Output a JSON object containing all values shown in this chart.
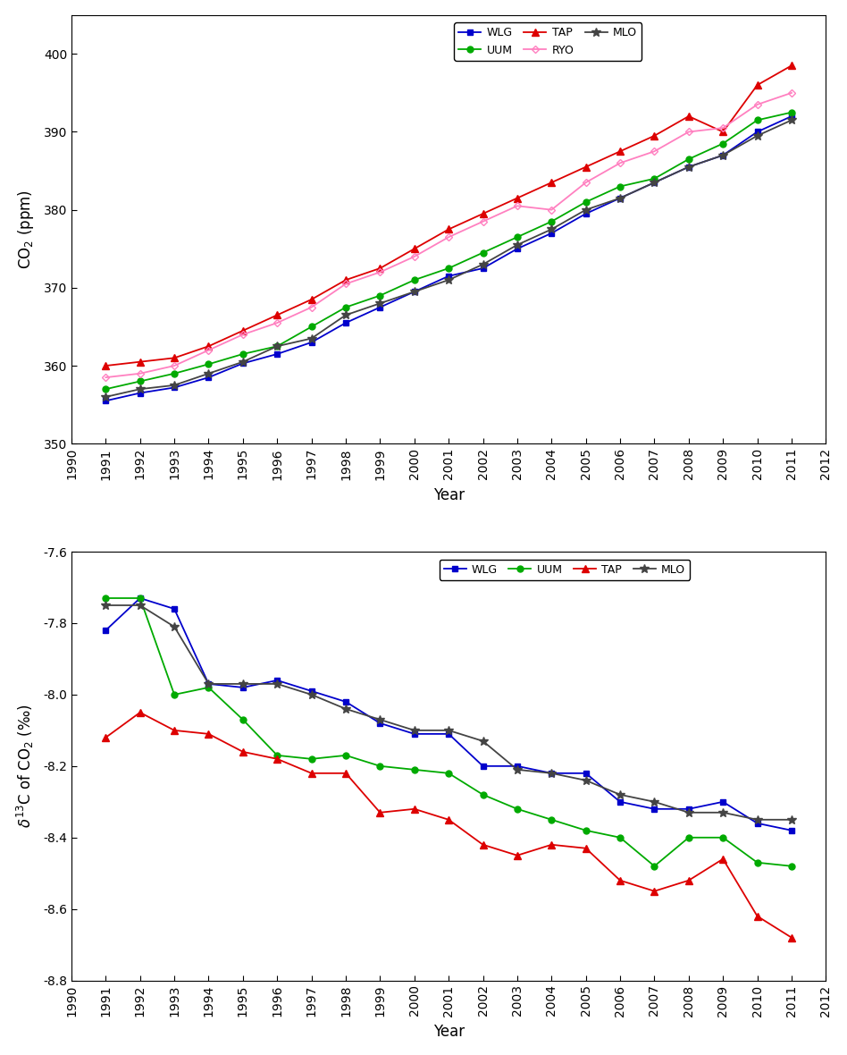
{
  "years": [
    1991,
    1992,
    1993,
    1994,
    1995,
    1996,
    1997,
    1998,
    1999,
    2000,
    2001,
    2002,
    2003,
    2004,
    2005,
    2006,
    2007,
    2008,
    2009,
    2010,
    2011
  ],
  "WLG_co2": [
    355.5,
    356.5,
    357.2,
    358.5,
    360.3,
    361.5,
    363.0,
    365.5,
    367.5,
    369.5,
    371.5,
    372.5,
    375.0,
    377.0,
    379.5,
    381.5,
    383.5,
    385.5,
    387.0,
    390.0,
    392.0
  ],
  "UUM_co2": [
    357.0,
    358.0,
    359.0,
    360.2,
    361.5,
    362.5,
    365.0,
    367.5,
    369.0,
    371.0,
    372.5,
    374.5,
    376.5,
    378.5,
    381.0,
    383.0,
    384.0,
    386.5,
    388.5,
    391.5,
    392.5
  ],
  "TAP_co2": [
    360.0,
    360.5,
    361.0,
    362.5,
    364.5,
    366.5,
    368.5,
    371.0,
    372.5,
    375.0,
    377.5,
    379.5,
    381.5,
    383.5,
    385.5,
    387.5,
    389.5,
    392.0,
    390.0,
    396.0,
    398.5
  ],
  "RYO_co2": [
    358.5,
    359.0,
    360.0,
    362.0,
    364.0,
    365.5,
    367.5,
    370.5,
    372.0,
    374.0,
    376.5,
    378.5,
    380.5,
    380.0,
    383.5,
    386.0,
    387.5,
    390.0,
    390.5,
    393.5,
    395.0
  ],
  "MLO_co2": [
    356.0,
    357.0,
    357.5,
    359.0,
    360.5,
    362.5,
    363.5,
    366.5,
    368.0,
    369.5,
    371.0,
    373.0,
    375.5,
    377.5,
    380.0,
    381.5,
    383.5,
    385.5,
    387.0,
    389.5,
    391.5
  ],
  "WLG_d13c": [
    -7.82,
    -7.73,
    -7.76,
    -7.97,
    -7.98,
    -7.96,
    -7.99,
    -8.02,
    -8.08,
    -8.11,
    -8.11,
    -8.2,
    -8.2,
    -8.22,
    -8.22,
    -8.3,
    -8.32,
    -8.32,
    -8.3,
    -8.36,
    -8.38
  ],
  "UUM_d13c": [
    -7.73,
    -7.73,
    -8.0,
    -7.98,
    -8.07,
    -8.17,
    -8.18,
    -8.17,
    -8.2,
    -8.21,
    -8.22,
    -8.28,
    -8.32,
    -8.35,
    -8.38,
    -8.4,
    -8.48,
    -8.4,
    -8.4,
    -8.47,
    -8.48
  ],
  "TAP_d13c": [
    -8.12,
    -8.05,
    -8.1,
    -8.11,
    -8.16,
    -8.18,
    -8.22,
    -8.22,
    -8.33,
    -8.32,
    -8.35,
    -8.42,
    -8.45,
    -8.42,
    -8.43,
    -8.52,
    -8.55,
    -8.52,
    -8.46,
    -8.62,
    -8.68
  ],
  "MLO_d13c": [
    -7.75,
    -7.75,
    -7.81,
    -7.97,
    -7.97,
    -7.97,
    -8.0,
    -8.04,
    -8.07,
    -8.1,
    -8.1,
    -8.13,
    -8.21,
    -8.22,
    -8.24,
    -8.28,
    -8.3,
    -8.33,
    -8.33,
    -8.35,
    -8.35
  ],
  "co2_ylim": [
    350,
    405
  ],
  "co2_yticks": [
    350,
    360,
    370,
    380,
    390,
    400
  ],
  "d13c_ylim": [
    -8.8,
    -7.6
  ],
  "d13c_yticks": [
    -8.8,
    -8.6,
    -8.4,
    -8.2,
    -8.0,
    -7.8,
    -7.6
  ],
  "colors": {
    "WLG": "#0000CC",
    "UUM": "#00AA00",
    "TAP": "#DD0000",
    "RYO": "#FF80C0",
    "MLO": "#444444"
  },
  "fig_width": 9.48,
  "fig_height": 11.8,
  "dpi": 100
}
